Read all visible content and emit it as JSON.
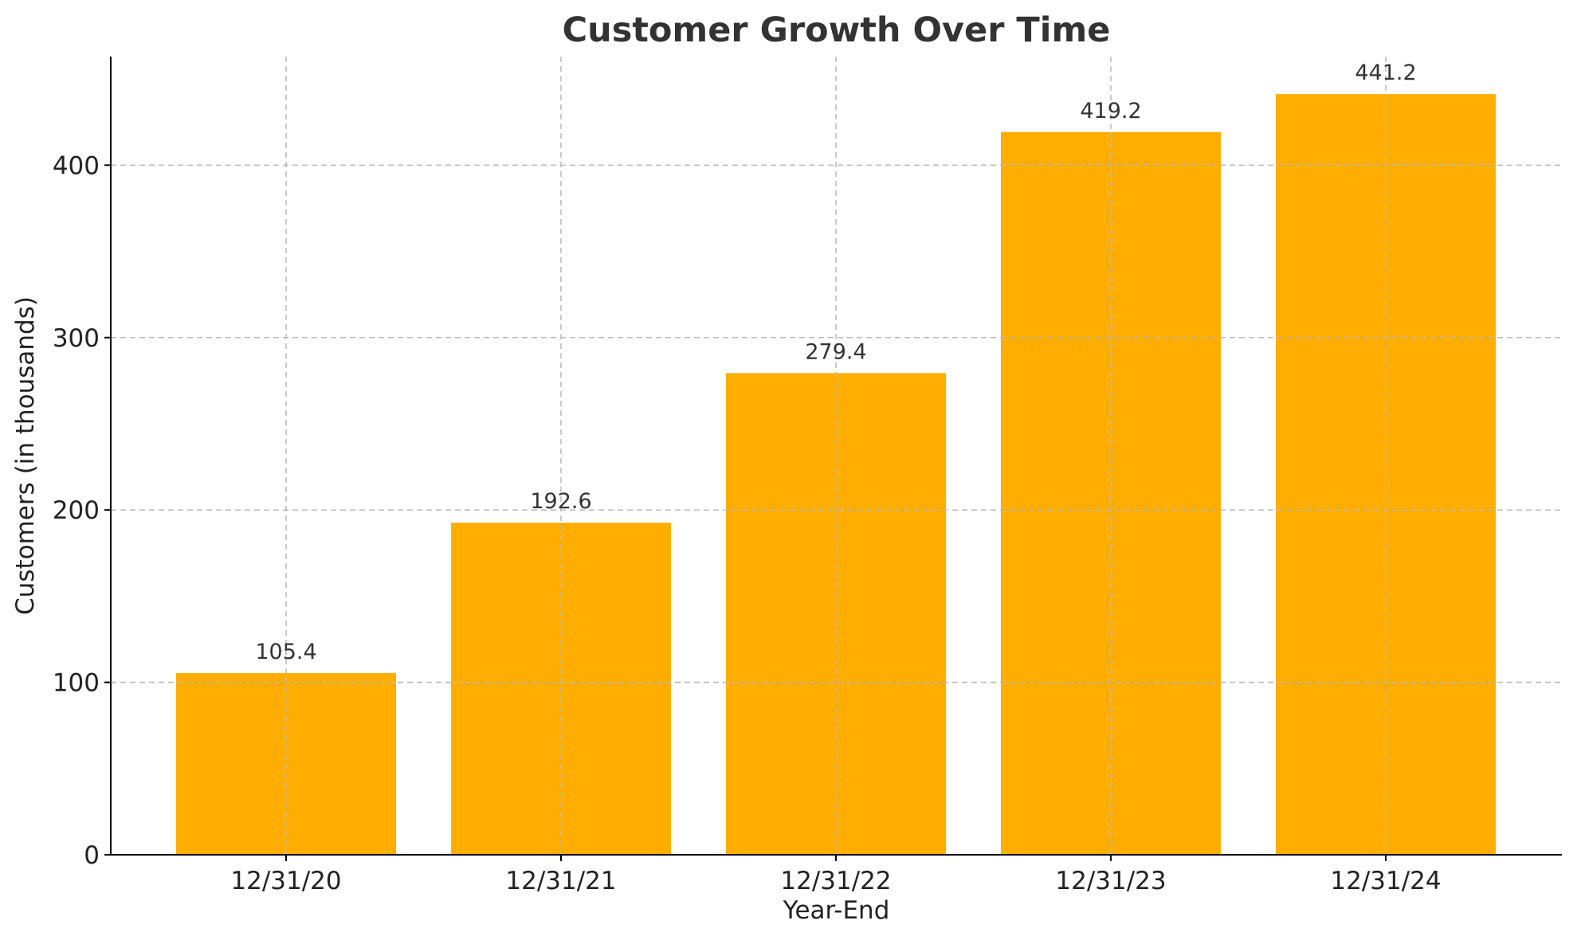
{
  "chart_data": {
    "type": "bar",
    "title": "Customer Growth Over Time",
    "xlabel": "Year-End",
    "ylabel": "Customers (in thousands)",
    "categories": [
      "12/31/20",
      "12/31/21",
      "12/31/22",
      "12/31/23",
      "12/31/24"
    ],
    "values": [
      105.4,
      192.6,
      279.4,
      419.2,
      441.2
    ],
    "data_labels": [
      "105.4",
      "192.6",
      "279.4",
      "419.2",
      "441.2"
    ],
    "ylim": [
      0,
      463
    ],
    "yticks": [
      0,
      100,
      200,
      300,
      400
    ],
    "grid": true,
    "bar_color": "#FFAE00"
  }
}
